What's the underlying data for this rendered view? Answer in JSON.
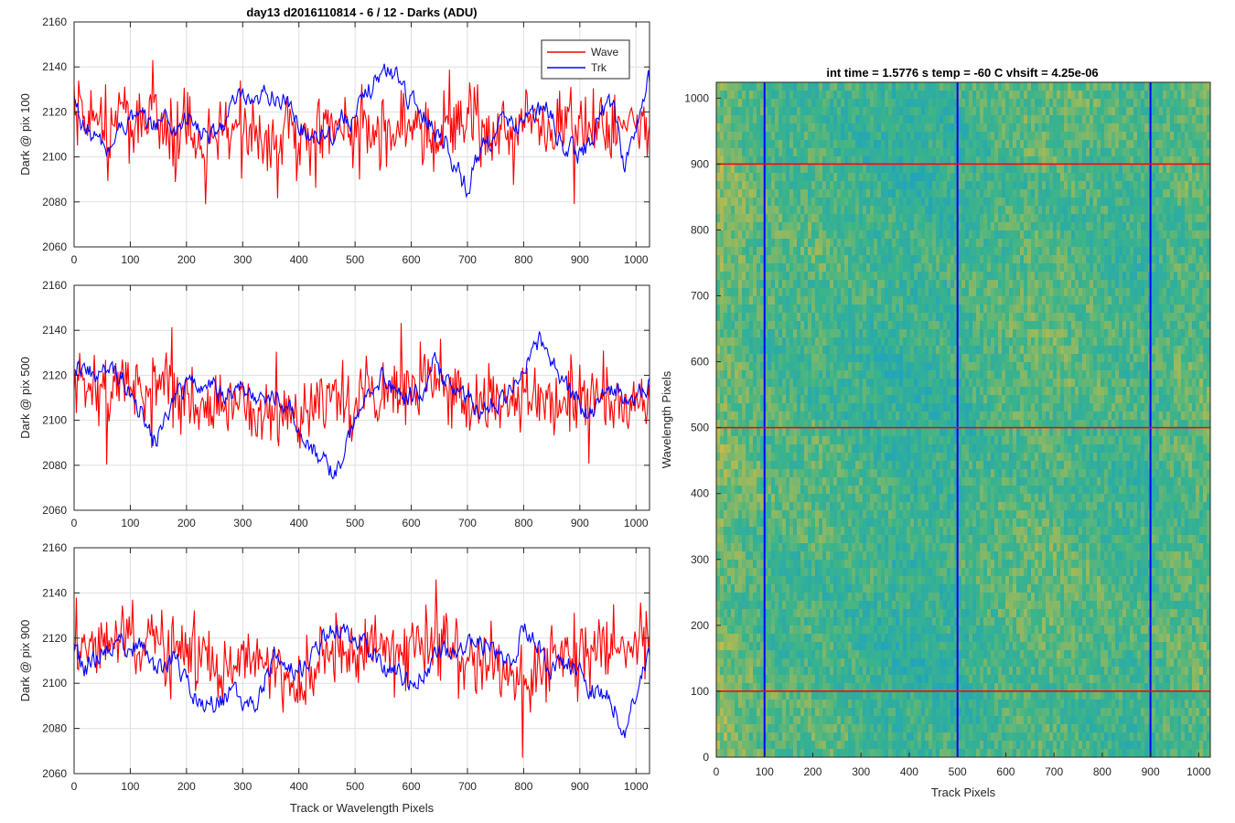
{
  "figure_title": "day13 d2016110814 - 6 / 12 - Darks (ADU)",
  "colors": {
    "wave": "#ff0000",
    "trk": "#0000ff",
    "grid": "#dfdfdf",
    "axis": "#262626",
    "image_low": "#1aa0c8",
    "image_mid": "#3bb48a",
    "image_high": "#c7bb48"
  },
  "chart_data": [
    {
      "type": "line",
      "title": "day13 d2016110814 - 6 / 12 - Darks (ADU)",
      "ylabel": "Dark @ pix 100",
      "xlabel": "",
      "xlim": [
        0,
        1024
      ],
      "ylim": [
        2060,
        2160
      ],
      "xticks": [
        0,
        100,
        200,
        300,
        400,
        500,
        600,
        700,
        800,
        900,
        1000
      ],
      "yticks": [
        2060,
        2080,
        2100,
        2120,
        2140,
        2160
      ],
      "grid": true,
      "legend": {
        "position": "top-right",
        "entries": [
          "Wave",
          "Trk"
        ]
      },
      "series": [
        {
          "name": "Wave",
          "color": "#ff0000",
          "x": [
            0,
            20,
            40,
            60,
            80,
            100,
            120,
            140,
            160,
            180,
            200,
            220,
            240,
            260,
            280,
            300,
            320,
            340,
            360,
            380,
            400,
            420,
            440,
            460,
            480,
            500,
            520,
            540,
            560,
            580,
            600,
            620,
            640,
            660,
            680,
            700,
            720,
            740,
            760,
            780,
            800,
            820,
            840,
            860,
            880,
            900,
            920,
            940,
            960,
            980,
            1000,
            1020
          ],
          "y": [
            2118,
            2114,
            2120,
            2110,
            2116,
            2118,
            2112,
            2120,
            2114,
            2110,
            2112,
            2108,
            2114,
            2116,
            2110,
            2112,
            2108,
            2106,
            2110,
            2114,
            2108,
            2110,
            2112,
            2114,
            2110,
            2112,
            2116,
            2112,
            2110,
            2114,
            2112,
            2110,
            2108,
            2112,
            2114,
            2116,
            2112,
            2110,
            2112,
            2108,
            2114,
            2112,
            2110,
            2112,
            2116,
            2112,
            2110,
            2114,
            2112,
            2110,
            2114,
            2116
          ],
          "noise_amplitude": 14
        },
        {
          "name": "Trk",
          "color": "#0000ff",
          "x": [
            0,
            20,
            40,
            60,
            80,
            100,
            120,
            140,
            160,
            180,
            200,
            220,
            240,
            260,
            280,
            300,
            320,
            340,
            360,
            380,
            400,
            420,
            440,
            460,
            480,
            500,
            520,
            540,
            560,
            580,
            600,
            620,
            640,
            660,
            680,
            700,
            720,
            740,
            760,
            780,
            800,
            820,
            840,
            860,
            880,
            900,
            920,
            940,
            960,
            980,
            1000,
            1020
          ],
          "y": [
            2125,
            2112,
            2108,
            2102,
            2112,
            2118,
            2116,
            2114,
            2118,
            2112,
            2118,
            2112,
            2108,
            2112,
            2122,
            2126,
            2120,
            2128,
            2128,
            2122,
            2114,
            2110,
            2112,
            2110,
            2118,
            2116,
            2128,
            2136,
            2138,
            2136,
            2124,
            2120,
            2112,
            2108,
            2095,
            2086,
            2102,
            2108,
            2116,
            2112,
            2118,
            2118,
            2122,
            2110,
            2104,
            2100,
            2108,
            2120,
            2124,
            2096,
            2112,
            2134
          ],
          "noise_amplitude": 5
        }
      ]
    },
    {
      "type": "line",
      "title": "",
      "ylabel": "Dark @ pix 500",
      "xlabel": "",
      "xlim": [
        0,
        1024
      ],
      "ylim": [
        2060,
        2160
      ],
      "xticks": [
        0,
        100,
        200,
        300,
        400,
        500,
        600,
        700,
        800,
        900,
        1000
      ],
      "yticks": [
        2060,
        2080,
        2100,
        2120,
        2140,
        2160
      ],
      "grid": true,
      "series": [
        {
          "name": "Wave",
          "color": "#ff0000",
          "x": [
            0,
            20,
            40,
            60,
            80,
            100,
            120,
            140,
            160,
            180,
            200,
            220,
            240,
            260,
            280,
            300,
            320,
            340,
            360,
            380,
            400,
            420,
            440,
            460,
            480,
            500,
            520,
            540,
            560,
            580,
            600,
            620,
            640,
            660,
            680,
            700,
            720,
            740,
            760,
            780,
            800,
            820,
            840,
            860,
            880,
            900,
            920,
            940,
            960,
            980,
            1000,
            1020
          ],
          "y": [
            2118,
            2114,
            2116,
            2112,
            2114,
            2118,
            2112,
            2116,
            2116,
            2112,
            2110,
            2108,
            2106,
            2108,
            2110,
            2108,
            2104,
            2102,
            2104,
            2102,
            2100,
            2106,
            2112,
            2114,
            2108,
            2112,
            2114,
            2114,
            2112,
            2110,
            2114,
            2116,
            2118,
            2116,
            2112,
            2110,
            2108,
            2110,
            2108,
            2106,
            2110,
            2108,
            2108,
            2110,
            2112,
            2108,
            2110,
            2112,
            2110,
            2108,
            2112,
            2110
          ],
          "noise_amplitude": 14
        },
        {
          "name": "Trk",
          "color": "#0000ff",
          "x": [
            0,
            20,
            40,
            60,
            80,
            100,
            120,
            140,
            160,
            180,
            200,
            220,
            240,
            260,
            280,
            300,
            320,
            340,
            360,
            380,
            400,
            420,
            440,
            460,
            480,
            500,
            520,
            540,
            560,
            580,
            600,
            620,
            640,
            660,
            680,
            700,
            720,
            740,
            760,
            780,
            800,
            820,
            840,
            860,
            880,
            900,
            920,
            940,
            960,
            980,
            1000,
            1020
          ],
          "y": [
            2126,
            2124,
            2118,
            2122,
            2120,
            2114,
            2104,
            2090,
            2098,
            2110,
            2114,
            2118,
            2116,
            2112,
            2112,
            2114,
            2112,
            2110,
            2112,
            2104,
            2098,
            2090,
            2082,
            2076,
            2084,
            2100,
            2112,
            2120,
            2116,
            2110,
            2110,
            2114,
            2126,
            2118,
            2116,
            2110,
            2104,
            2106,
            2110,
            2118,
            2124,
            2136,
            2134,
            2122,
            2112,
            2106,
            2104,
            2110,
            2112,
            2110,
            2108,
            2116
          ],
          "noise_amplitude": 5
        }
      ]
    },
    {
      "type": "line",
      "title": "",
      "ylabel": "Dark @ pix 900",
      "xlabel": "Track or Wavelength Pixels",
      "xlim": [
        0,
        1024
      ],
      "ylim": [
        2060,
        2160
      ],
      "xticks": [
        0,
        100,
        200,
        300,
        400,
        500,
        600,
        700,
        800,
        900,
        1000
      ],
      "yticks": [
        2060,
        2080,
        2100,
        2120,
        2140,
        2160
      ],
      "grid": true,
      "series": [
        {
          "name": "Wave",
          "color": "#ff0000",
          "x": [
            0,
            20,
            40,
            60,
            80,
            100,
            120,
            140,
            160,
            180,
            200,
            220,
            240,
            260,
            280,
            300,
            320,
            340,
            360,
            380,
            400,
            420,
            440,
            460,
            480,
            500,
            520,
            540,
            560,
            580,
            600,
            620,
            640,
            660,
            680,
            700,
            720,
            740,
            760,
            780,
            800,
            820,
            840,
            860,
            880,
            900,
            920,
            940,
            960,
            980,
            1000,
            1020
          ],
          "y": [
            2124,
            2118,
            2120,
            2116,
            2118,
            2120,
            2116,
            2118,
            2116,
            2118,
            2114,
            2110,
            2108,
            2104,
            2108,
            2110,
            2108,
            2106,
            2104,
            2100,
            2098,
            2104,
            2114,
            2116,
            2118,
            2116,
            2118,
            2116,
            2114,
            2114,
            2116,
            2118,
            2118,
            2116,
            2114,
            2112,
            2110,
            2112,
            2108,
            2104,
            2100,
            2102,
            2104,
            2110,
            2114,
            2112,
            2116,
            2118,
            2116,
            2118,
            2120,
            2122
          ],
          "noise_amplitude": 14
        },
        {
          "name": "Trk",
          "color": "#0000ff",
          "x": [
            0,
            20,
            40,
            60,
            80,
            100,
            120,
            140,
            160,
            180,
            200,
            220,
            240,
            260,
            280,
            300,
            320,
            340,
            360,
            380,
            400,
            420,
            440,
            460,
            480,
            500,
            520,
            540,
            560,
            580,
            600,
            620,
            640,
            660,
            680,
            700,
            720,
            740,
            760,
            780,
            800,
            820,
            840,
            860,
            880,
            900,
            920,
            940,
            960,
            980,
            1000,
            1020
          ],
          "y": [
            2114,
            2106,
            2112,
            2116,
            2118,
            2116,
            2118,
            2108,
            2104,
            2112,
            2100,
            2094,
            2090,
            2092,
            2096,
            2090,
            2088,
            2102,
            2114,
            2110,
            2104,
            2112,
            2120,
            2124,
            2122,
            2118,
            2120,
            2108,
            2104,
            2106,
            2098,
            2106,
            2110,
            2114,
            2112,
            2120,
            2116,
            2118,
            2110,
            2112,
            2124,
            2120,
            2108,
            2106,
            2110,
            2104,
            2098,
            2096,
            2090,
            2080,
            2098,
            2110
          ],
          "noise_amplitude": 5
        }
      ]
    },
    {
      "type": "heatmap",
      "title": "int time = 1.5776 s    temp = -60 C    vhsift = 4.25e-06",
      "xlabel": "Track Pixels",
      "ylabel": "Wavelength Pixels",
      "xlim": [
        0,
        1024
      ],
      "ylim": [
        0,
        1024
      ],
      "xticks": [
        0,
        100,
        200,
        300,
        400,
        500,
        600,
        700,
        800,
        900,
        1000
      ],
      "yticks": [
        0,
        100,
        200,
        300,
        400,
        500,
        600,
        700,
        800,
        900,
        1000
      ],
      "grid": false,
      "colormap": "parula",
      "column_profile": {
        "x": [
          0,
          50,
          100,
          150,
          200,
          250,
          300,
          350,
          400,
          450,
          500,
          550,
          600,
          650,
          700,
          750,
          800,
          850,
          900,
          950,
          1000,
          1024
        ],
        "level": [
          0.72,
          0.62,
          0.55,
          0.52,
          0.55,
          0.5,
          0.46,
          0.42,
          0.4,
          0.42,
          0.44,
          0.52,
          0.56,
          0.6,
          0.58,
          0.55,
          0.52,
          0.48,
          0.5,
          0.55,
          0.6,
          0.62
        ]
      },
      "vertical_lines": {
        "x": [
          100,
          500,
          900
        ],
        "color": "#0000ff"
      },
      "horizontal_lines": {
        "y": [
          100,
          500,
          900
        ],
        "color": "#ff0000"
      }
    }
  ]
}
